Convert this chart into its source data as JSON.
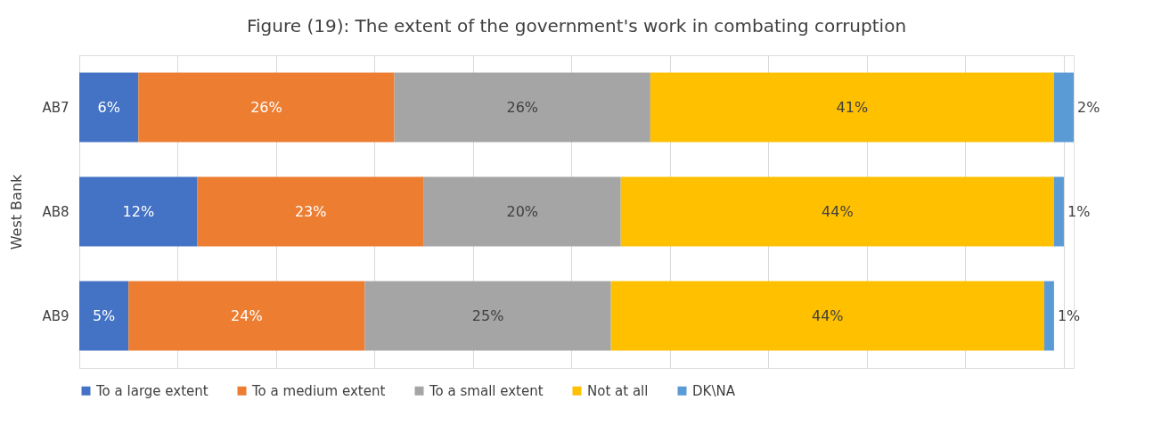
{
  "chart_data": {
    "type": "bar",
    "orientation": "horizontal",
    "stacked": true,
    "title": "Figure (19): The extent of the government's work in combating corruption",
    "ylabel": "West Bank",
    "categories": [
      "AB7",
      "AB8",
      "AB9"
    ],
    "series": [
      {
        "name": "To a large extent",
        "color": "#4472c4",
        "values": [
          6,
          12,
          5
        ],
        "value_labels": [
          "6%",
          "12%",
          "5%"
        ]
      },
      {
        "name": "To a medium extent",
        "color": "#ed7d31",
        "values": [
          26,
          23,
          24
        ],
        "value_labels": [
          "26%",
          "23%",
          "24%"
        ]
      },
      {
        "name": "To a small extent",
        "color": "#a5a5a5",
        "values": [
          26,
          20,
          25
        ],
        "value_labels": [
          "26%",
          "20%",
          "25%"
        ]
      },
      {
        "name": "Not at all",
        "color": "#ffc000",
        "values": [
          41,
          44,
          44
        ],
        "value_labels": [
          "41%",
          "44%",
          "44%"
        ]
      },
      {
        "name": "DK\\NA",
        "color": "#5b9bd5",
        "values": [
          2,
          1,
          1
        ],
        "value_labels": [
          "2%",
          "1%",
          "1%"
        ]
      }
    ],
    "xlim": [
      0,
      101
    ],
    "xticks": [
      {
        "value": 0,
        "label": null
      },
      {
        "value": 10,
        "label": null
      },
      {
        "value": 20,
        "label": null
      },
      {
        "value": 30,
        "label": null
      },
      {
        "value": 40,
        "label": null
      },
      {
        "value": 50,
        "label": null
      },
      {
        "value": 60,
        "label": null
      },
      {
        "value": 70,
        "label": null
      },
      {
        "value": 80,
        "label": null
      },
      {
        "value": 90,
        "label": null
      },
      {
        "value": 100,
        "label": null
      }
    ],
    "tick_labels": "y",
    "grid": "x",
    "legend": "bottom"
  }
}
